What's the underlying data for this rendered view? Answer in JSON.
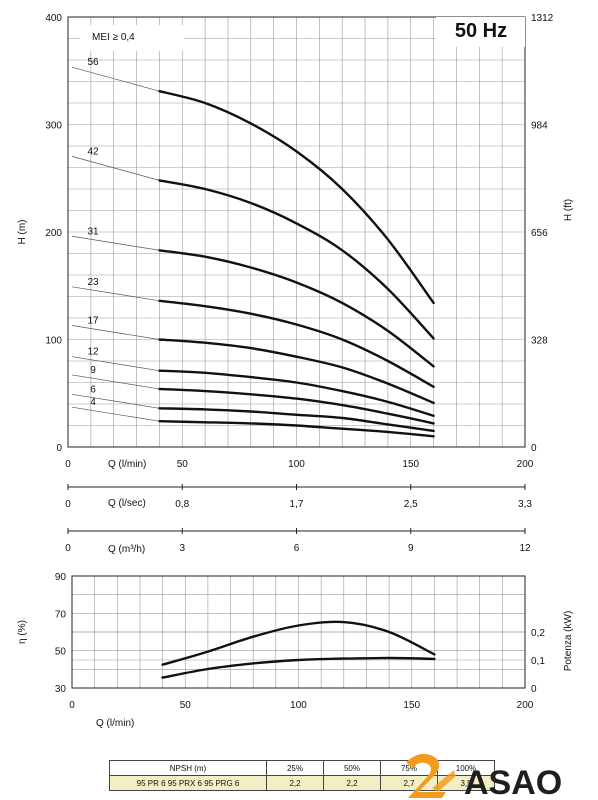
{
  "chart_data": [
    {
      "type": "line",
      "id": "head",
      "title": "50 Hz",
      "annotation": "MEI ≥ 0,4",
      "xlabel": "Q (l/min)",
      "ylabel": "H (m)",
      "ylabel_right": "H (ft)",
      "xlim": [
        0,
        200
      ],
      "ylim": [
        0,
        400
      ],
      "x_ticks": [
        "0",
        "50",
        "100",
        "150",
        "200"
      ],
      "y_ticks": [
        "0",
        "100",
        "200",
        "300",
        "400"
      ],
      "y_ticks_right": [
        "0",
        "328",
        "656",
        "984",
        "1312"
      ],
      "grid": true,
      "x": [
        40,
        60,
        80,
        100,
        120,
        140,
        160
      ],
      "series": [
        {
          "name": "56",
          "values": [
            331,
            320,
            301,
            275,
            240,
            193,
            134
          ]
        },
        {
          "name": "42",
          "values": [
            248,
            240,
            227,
            208,
            183,
            147,
            101
          ]
        },
        {
          "name": "31",
          "values": [
            183,
            177,
            167,
            153,
            134,
            108,
            75
          ]
        },
        {
          "name": "23",
          "values": [
            136,
            131,
            124,
            114,
            100,
            80,
            56
          ]
        },
        {
          "name": "17",
          "values": [
            100,
            97,
            92,
            84,
            74,
            59,
            41
          ]
        },
        {
          "name": "12",
          "values": [
            71,
            69,
            65,
            60,
            52,
            42,
            29
          ]
        },
        {
          "name": "9",
          "values": [
            54,
            52,
            49,
            45,
            39,
            31,
            22
          ]
        },
        {
          "name": "6",
          "values": [
            36,
            35,
            33,
            30,
            27,
            21,
            15
          ]
        },
        {
          "name": "4",
          "values": [
            24,
            23,
            22,
            20,
            17,
            14,
            10
          ]
        }
      ]
    },
    {
      "type": "axis",
      "id": "flow-lsec",
      "xlabel": "Q (l/sec)",
      "x_ticks": [
        "0",
        "0,8",
        "1,7",
        "2,5",
        "3,3"
      ]
    },
    {
      "type": "axis",
      "id": "flow-m3h",
      "xlabel": "Q (m³/h)",
      "x_ticks": [
        "0",
        "3",
        "6",
        "9",
        "12"
      ]
    },
    {
      "type": "line",
      "id": "efficiency-power",
      "xlabel": "Q (l/min)",
      "ylabel": "η (%)",
      "ylabel_right": "Potenza (kW)",
      "xlim": [
        0,
        200
      ],
      "ylim": [
        30,
        90
      ],
      "x_ticks": [
        "0",
        "50",
        "100",
        "150",
        "200"
      ],
      "y_ticks": [
        "30",
        "50",
        "70",
        "90"
      ],
      "y_ticks_right": [
        "0",
        "0,1",
        "0,2"
      ],
      "grid": true,
      "x": [
        40,
        60,
        80,
        100,
        120,
        140,
        160
      ],
      "series": [
        {
          "id": "efficiency",
          "values": [
            42.5,
            49.5,
            57.5,
            63.5,
            65.3,
            60,
            48
          ]
        },
        {
          "id": "power",
          "values": [
            0.037,
            0.068,
            0.088,
            0.1,
            0.105,
            0.107,
            0.104
          ]
        }
      ]
    }
  ],
  "npsh_table": {
    "header": [
      "NPSH (m)",
      "25%",
      "50%",
      "75%",
      "100%"
    ],
    "row": [
      "95 PR 6    95 PRX 6    95 PRG 6",
      "2,2",
      "2,2",
      "2,7",
      "3,5"
    ]
  },
  "logo": {
    "text": "ASAO"
  },
  "colors": {
    "curve": "#111111",
    "logo_orange": "#f39a1f",
    "logo_text": "#1f1f1f",
    "table_fill": "#f3efc4"
  }
}
